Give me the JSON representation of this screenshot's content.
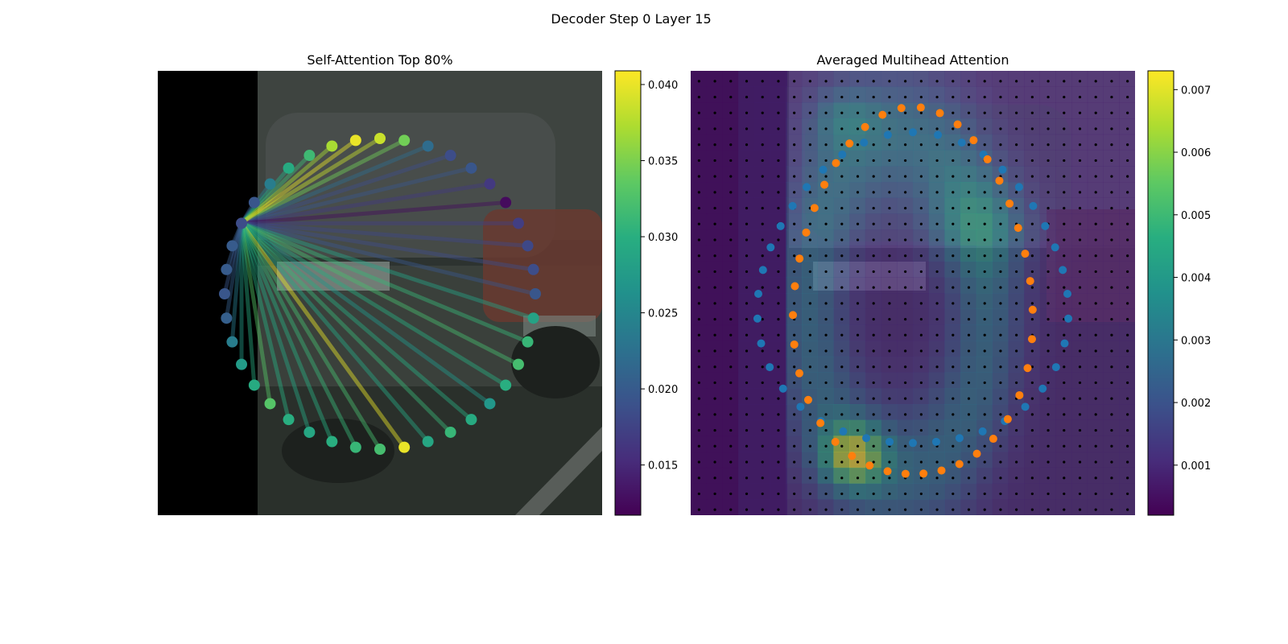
{
  "figure": {
    "suptitle": "Decoder Step 0 Layer 15"
  },
  "colors": {
    "viridis": [
      "#440154",
      "#472d7b",
      "#3b528b",
      "#2c728e",
      "#21918c",
      "#28ae80",
      "#5ec962",
      "#addc30",
      "#fde725"
    ],
    "orange_points": "#ff7f0e",
    "blue_points": "#1f77b4",
    "grid_dots": "#000000"
  },
  "chart_data": [
    {
      "type": "scatter",
      "title": "Self-Attention Top 80%",
      "background": "dark street photo with grey car, black band on left",
      "points_count": 40,
      "query_point_index": 33,
      "point_attention": [
        0.0385,
        0.0345,
        0.022,
        0.0185,
        0.0195,
        0.0165,
        0.0125,
        0.017,
        0.018,
        0.0185,
        0.0195,
        0.0285,
        0.031,
        0.032,
        0.03,
        0.027,
        0.0295,
        0.031,
        0.029,
        0.04,
        0.032,
        0.031,
        0.03,
        0.029,
        0.03,
        0.033,
        0.0295,
        0.0275,
        0.024,
        0.0205,
        0.0195,
        0.02,
        0.02,
        0.0185,
        0.0195,
        0.024,
        0.0295,
        0.0315,
        0.037,
        0.04
      ],
      "colorbar": {
        "ticks": [
          "0.015",
          "0.020",
          "0.025",
          "0.030",
          "0.035",
          "0.040"
        ],
        "range": [
          0.0117,
          0.0409
        ]
      }
    },
    {
      "type": "heatmap",
      "title": "Averaged Multihead Attention",
      "background": "same street photo overlaid with 28x28 attention heatmap",
      "grid_size": 28,
      "series": [
        {
          "name": "",
          "color": "#ff7f0e",
          "points_count": 40
        },
        {
          "name": "",
          "color": "#1f77b4",
          "points_count": 40
        }
      ],
      "colorbar": {
        "ticks": [
          "0.001",
          "0.002",
          "0.003",
          "0.004",
          "0.005",
          "0.006",
          "0.007"
        ],
        "range": [
          0.0002,
          0.0073
        ]
      }
    }
  ]
}
